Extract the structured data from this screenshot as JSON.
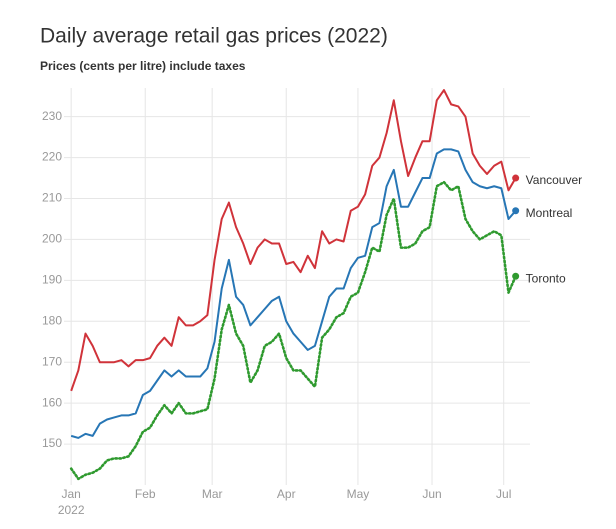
{
  "chart_data": {
    "type": "line",
    "title": "Daily average retail gas prices (2022)",
    "subtitle": "Prices (cents per litre) include taxes",
    "x": [
      0,
      3,
      6,
      9,
      12,
      15,
      18,
      21,
      24,
      27,
      30,
      33,
      36,
      39,
      42,
      45,
      48,
      51,
      54,
      57,
      60,
      63,
      66,
      69,
      72,
      75,
      78,
      81,
      84,
      87,
      90,
      93,
      96,
      99,
      102,
      105,
      108,
      111,
      114,
      117,
      120,
      123,
      126,
      129,
      132,
      135,
      138,
      141,
      144,
      147,
      150,
      153,
      156,
      159,
      162,
      165,
      168,
      171,
      174,
      177,
      180,
      183,
      186
    ],
    "xlim": [
      -3,
      192
    ],
    "xticks": [
      {
        "value": 0,
        "label": "Jan"
      },
      {
        "value": 31,
        "label": "Feb"
      },
      {
        "value": 59,
        "label": "Mar"
      },
      {
        "value": 90,
        "label": "Apr"
      },
      {
        "value": 120,
        "label": "May"
      },
      {
        "value": 151,
        "label": "Jun"
      },
      {
        "value": 181,
        "label": "Jul"
      }
    ],
    "x_year_label": "2022",
    "ylim": [
      140,
      237
    ],
    "yticks": [
      150,
      160,
      170,
      180,
      190,
      200,
      210,
      220,
      230
    ],
    "grid": true,
    "series": [
      {
        "name": "Vancouver",
        "color": "#d0333a",
        "line_style": "solid",
        "values": [
          163,
          168,
          177,
          174,
          170,
          170,
          170,
          170.5,
          169,
          170.5,
          170.5,
          171,
          174,
          176,
          174,
          181,
          179,
          179,
          180,
          181.5,
          195,
          205,
          209,
          203,
          199,
          194,
          198,
          200,
          199,
          199,
          194,
          194.5,
          192,
          196,
          193,
          202,
          199,
          200,
          199.5,
          207,
          208,
          211,
          218,
          220,
          226,
          234,
          224,
          215.5,
          220,
          224,
          224,
          234,
          236.5,
          233,
          232.5,
          230,
          221,
          218,
          216,
          218,
          219,
          212,
          215
        ]
      },
      {
        "name": "Montreal",
        "color": "#2776b5",
        "line_style": "solid",
        "values": [
          152,
          151.5,
          152.5,
          152,
          155,
          156,
          156.5,
          157,
          157,
          157.5,
          162,
          163,
          165.5,
          168,
          166.5,
          168,
          166.5,
          166.5,
          166.5,
          168.5,
          175,
          188,
          195,
          186,
          184,
          179,
          181,
          183,
          185,
          186,
          180,
          177,
          175,
          173,
          174,
          180,
          186,
          188,
          188,
          193,
          195.5,
          196,
          203,
          204,
          213,
          217,
          208,
          208,
          211.5,
          215,
          215,
          221,
          222,
          222,
          221.5,
          217,
          214,
          213,
          212.5,
          213,
          212.5,
          205,
          207
        ]
      },
      {
        "name": "Toronto",
        "color": "#2f9a2f",
        "line_style": "dotted",
        "values": [
          144,
          141.5,
          142.5,
          143,
          144,
          146,
          146.5,
          146.5,
          147,
          149.5,
          153,
          154,
          157,
          159.5,
          157.5,
          160,
          157.5,
          157.5,
          158,
          158.5,
          166,
          178,
          184,
          177,
          174,
          165,
          168,
          174,
          175,
          177,
          171,
          168,
          168,
          166,
          164,
          176,
          178,
          181,
          182,
          186,
          187,
          192,
          198,
          197,
          206,
          210,
          198,
          198,
          199,
          202,
          203,
          213,
          214,
          212,
          213,
          205,
          202,
          200,
          201,
          202,
          201,
          187,
          191
        ]
      }
    ]
  }
}
